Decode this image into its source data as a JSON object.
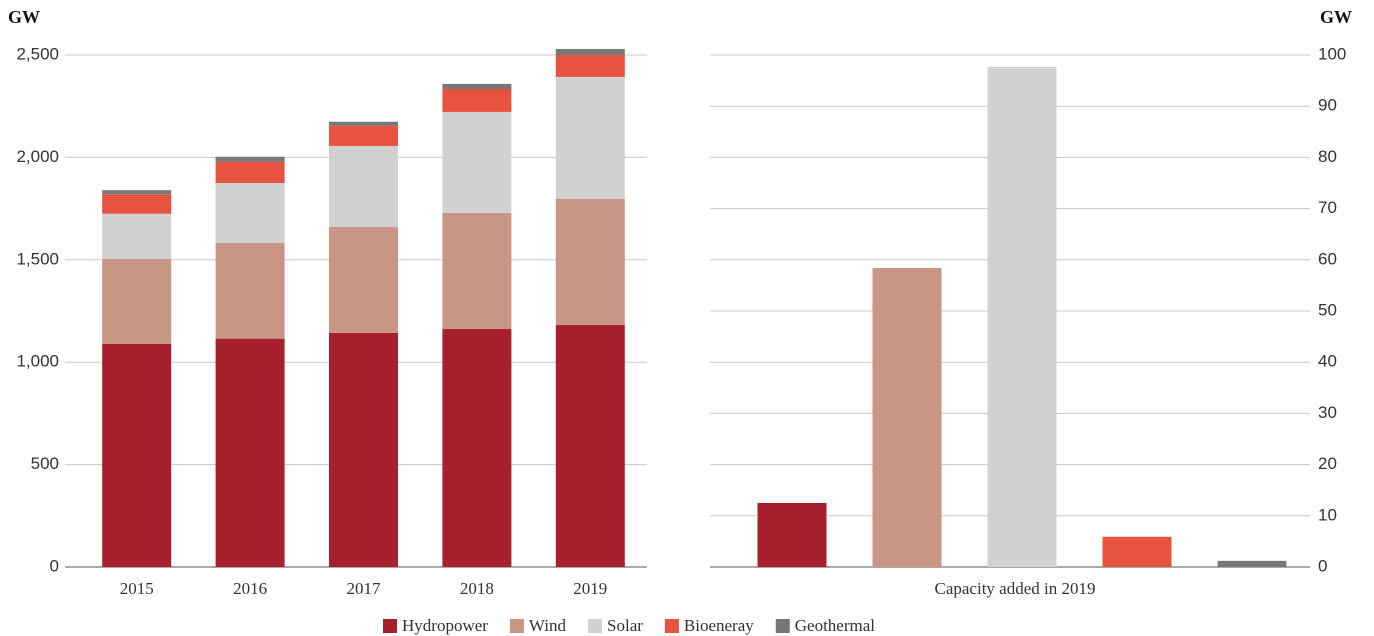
{
  "chart_data": [
    {
      "type": "stacked_bar",
      "ylabel": "GW",
      "categories": [
        "2015",
        "2016",
        "2017",
        "2018",
        "2019"
      ],
      "series": [
        {
          "name": "Hydropower",
          "color": "#a6202e",
          "values": [
            1090,
            1115,
            1143,
            1162,
            1182
          ]
        },
        {
          "name": "Wind",
          "color": "#c99584",
          "values": [
            415,
            467,
            517,
            567,
            615
          ]
        },
        {
          "name": "Solar",
          "color": "#d1d1d1",
          "values": [
            220,
            293,
            396,
            493,
            596
          ]
        },
        {
          "name": "Bioeneray",
          "color": "#e85340",
          "values": [
            95,
            103,
            98,
            112,
            107
          ]
        },
        {
          "name": "Geothermal",
          "color": "#777777",
          "values": [
            20,
            25,
            20,
            25,
            29
          ]
        }
      ],
      "ylim": [
        0,
        2500
      ],
      "yticks": [
        0,
        500,
        {
          "value": 1000,
          "label": "1,000"
        },
        {
          "value": 1500,
          "label": "1,500"
        },
        {
          "value": 2000,
          "label": "2,000"
        },
        {
          "value": 2500,
          "label": "2,500"
        }
      ],
      "grid": true,
      "legend": "bottom"
    },
    {
      "type": "bar",
      "ylabel": "GW",
      "xlabel": "Capacity added in 2019",
      "categories": [
        null,
        null,
        null,
        null,
        null
      ],
      "values": [
        12.5,
        58.4,
        97.7,
        5.9,
        1.2
      ],
      "colors": [
        "#a6202e",
        "#c99584",
        "#d1d1d1",
        "#e85340",
        "#777777"
      ],
      "ylim": [
        0,
        100
      ],
      "yticks": [
        0,
        10,
        20,
        30,
        40,
        50,
        60,
        70,
        80,
        90,
        100
      ],
      "grid": true,
      "yaxis_side": "right"
    }
  ]
}
